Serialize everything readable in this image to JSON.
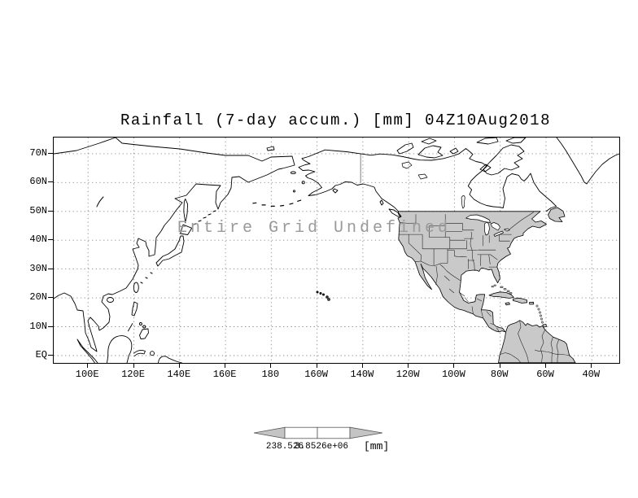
{
  "title": "Rainfall (7-day accum.) [mm] 04Z10Aug2018",
  "overlay_message": "Entire Grid Undefined",
  "axes": {
    "y_ticks": [
      "70N",
      "60N",
      "50N",
      "40N",
      "30N",
      "20N",
      "10N",
      "EQ"
    ],
    "x_ticks": [
      "100E",
      "120E",
      "140E",
      "160E",
      "180",
      "160W",
      "140W",
      "120W",
      "100W",
      "80W",
      "60W",
      "40W"
    ]
  },
  "colorbar": {
    "tick_labels": [
      "238.526",
      "3.8526e+06"
    ],
    "unit": "[mm]",
    "arrow_color": "#c4c4c4",
    "cell_color": "#ffffff"
  },
  "colors": {
    "land_shaded": "#c9c9c9",
    "coastline": "#000000",
    "grid": "#8a8a8a",
    "overlay_text": "#9a9a9a"
  },
  "chart_data": {
    "type": "heatmap",
    "title": "Rainfall (7-day accum.) [mm] 04Z10Aug2018",
    "variable": "Rainfall (7-day accum.)",
    "units": "mm",
    "valid_time": "04Z10Aug2018",
    "status": "Entire Grid Undefined",
    "x_ticks": [
      "100E",
      "120E",
      "140E",
      "160E",
      "180",
      "160W",
      "140W",
      "120W",
      "100W",
      "80W",
      "60W",
      "40W"
    ],
    "y_ticks": [
      "70N",
      "60N",
      "50N",
      "40N",
      "30N",
      "20N",
      "10N",
      "EQ"
    ],
    "grid": "dotted lat-lon graticule every 10 deg lat / 20 deg lon",
    "legend": {
      "type": "colorbar-arrow",
      "position": "bottom-center",
      "tick_labels": [
        "238.526",
        "3.8526e+06"
      ],
      "unit": "[mm]"
    },
    "values": [],
    "notes": "No data rendered; base map with land south of 50N in data domain shaded gray"
  }
}
